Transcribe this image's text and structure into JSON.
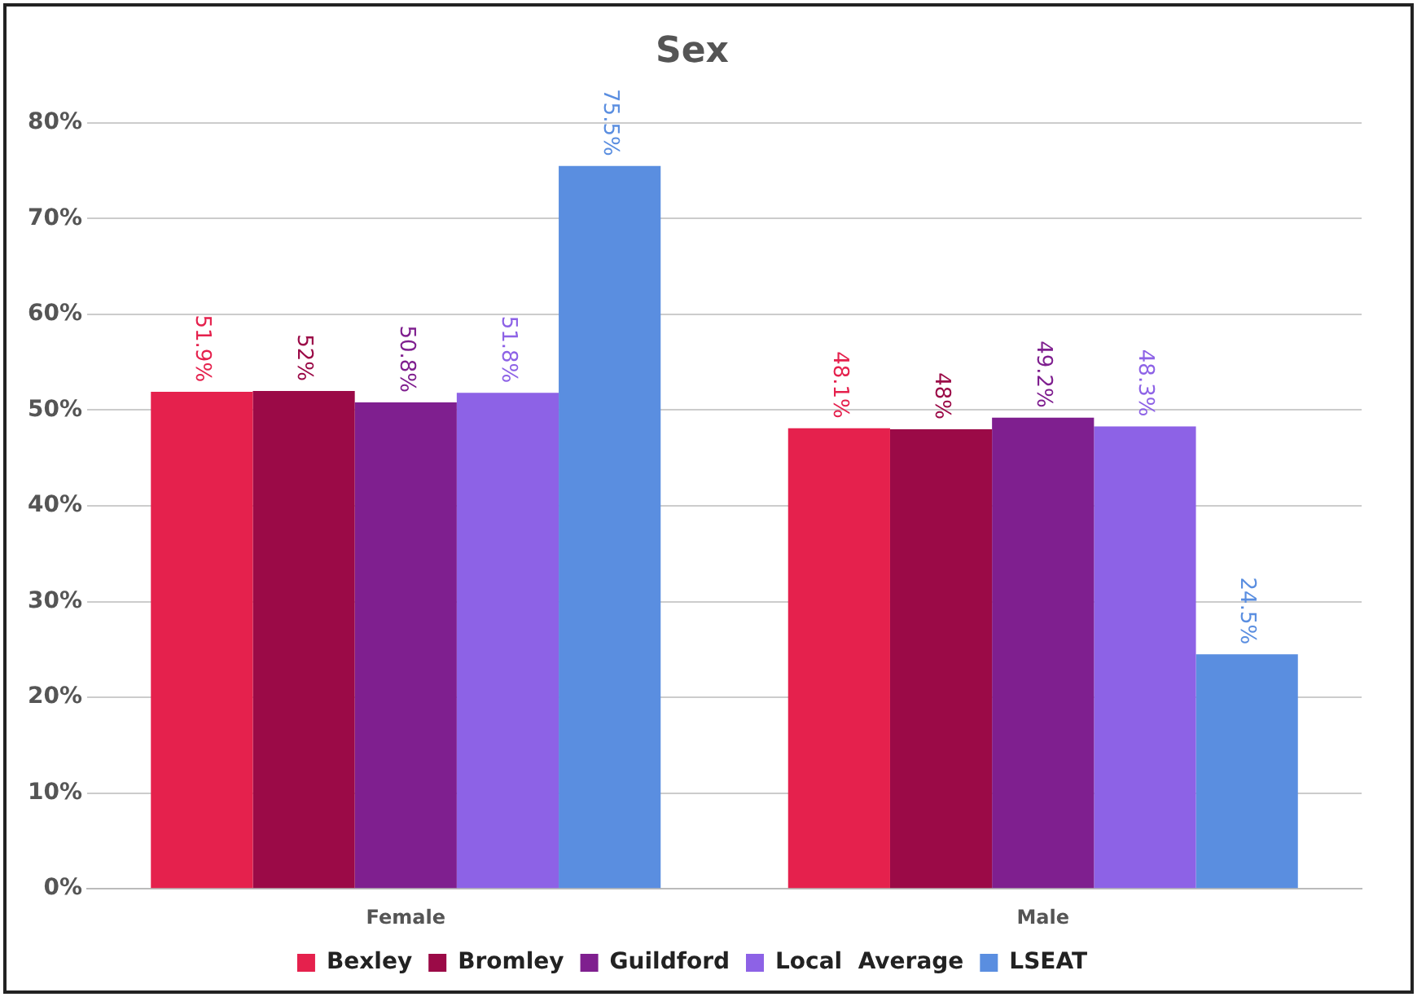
{
  "chart_data": {
    "type": "bar",
    "title": "Sex",
    "categories": [
      "Female",
      "Male"
    ],
    "series": [
      {
        "name": "Bexley",
        "color": "#e5214d",
        "values": [
          51.9,
          48.1
        ],
        "value_labels": [
          "51.9%",
          "48.1%"
        ]
      },
      {
        "name": "Bromley",
        "color": "#9b0a47",
        "values": [
          52,
          48
        ],
        "value_labels": [
          "52%",
          "48%"
        ]
      },
      {
        "name": "Guildford",
        "color": "#7f1f8f",
        "values": [
          50.8,
          49.2
        ],
        "value_labels": [
          "50.8%",
          "49.2%"
        ]
      },
      {
        "name": "Local  Average",
        "color": "#8d62e6",
        "values": [
          51.8,
          48.3
        ],
        "value_labels": [
          "51.8%",
          "48.3%"
        ]
      },
      {
        "name": "LSEAT",
        "color": "#5a8ee0",
        "values": [
          75.5,
          24.5
        ],
        "value_labels": [
          "75.5%",
          "24.5%"
        ]
      }
    ],
    "ylim": [
      0,
      80
    ],
    "yticks": [
      {
        "value": 0,
        "label": "0%"
      },
      {
        "value": 10,
        "label": "10%"
      },
      {
        "value": 20,
        "label": "20%"
      },
      {
        "value": 30,
        "label": "30%"
      },
      {
        "value": 40,
        "label": "40%"
      },
      {
        "value": 50,
        "label": "50%"
      },
      {
        "value": 60,
        "label": "60%"
      },
      {
        "value": 70,
        "label": "70%"
      },
      {
        "value": 80,
        "label": "80%"
      }
    ],
    "grid": "y",
    "legend": "bottom"
  }
}
